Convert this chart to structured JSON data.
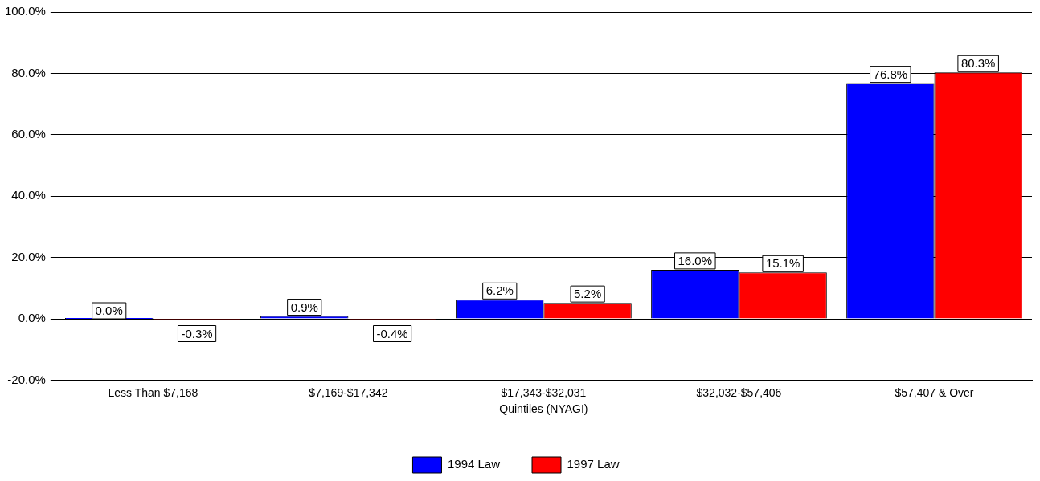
{
  "chart_data": {
    "type": "bar",
    "xlabel": "Quintiles (NYAGI)",
    "categories": [
      "Less Than $7,168",
      "$7,169-$17,342",
      "$17,343-$32,031",
      "$32,032-$57,406",
      "$57,407 & Over"
    ],
    "series": [
      {
        "name": "1994 Law",
        "color": "#0000ff",
        "values": [
          0,
          0.9,
          6.2,
          16.0,
          76.8
        ],
        "value_labels": [
          "0.0%",
          "0.9%",
          "6.2%",
          "16.0%",
          "76.8%"
        ]
      },
      {
        "name": "1997 Law",
        "color": "#ff0000",
        "values": [
          -0.3,
          -0.4,
          5.2,
          15.1,
          80.3
        ],
        "value_labels": [
          "-0.3%",
          "-0.4%",
          "5.2%",
          "15.1%",
          "80.3%"
        ]
      }
    ],
    "ylim": [
      -20,
      100
    ],
    "yticks": [
      {
        "value": -20,
        "label": "-20.0%"
      },
      {
        "value": 0,
        "label": "0.0%"
      },
      {
        "value": 20,
        "label": "20.0%"
      },
      {
        "value": 40,
        "label": "40.0%"
      },
      {
        "value": 60,
        "label": "60.0%"
      },
      {
        "value": 80,
        "label": "80.0%"
      },
      {
        "value": 100,
        "label": "100.0%"
      }
    ],
    "grid": "y",
    "legend": "bottom"
  }
}
